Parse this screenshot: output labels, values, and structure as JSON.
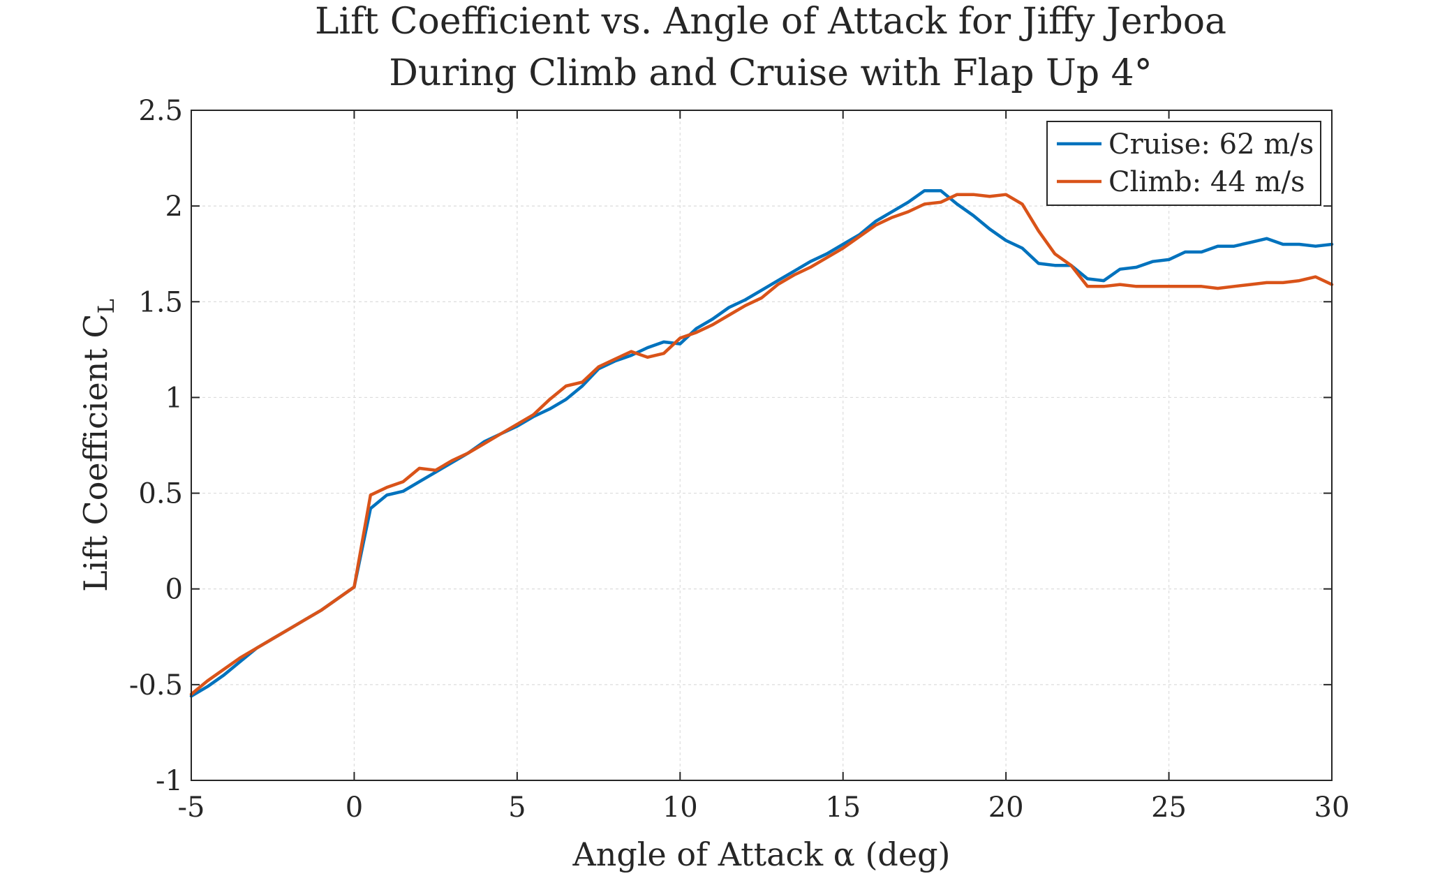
{
  "chart_data": {
    "type": "line",
    "title_lines": [
      "Lift Coefficient vs. Angle of Attack for Jiffy Jerboa",
      "During Climb and Cruise with Flap Up 4°"
    ],
    "xlabel": "Angle of Attack α (deg)",
    "ylabel": "Lift Coefficient C",
    "ylabel_subscript": "L",
    "xlim": [
      -5,
      30
    ],
    "ylim": [
      -1,
      2.5
    ],
    "xticks": [
      -5,
      0,
      5,
      10,
      15,
      20,
      25,
      30
    ],
    "xtick_labels": [
      "-5",
      "0",
      "5",
      "10",
      "15",
      "20",
      "25",
      "30"
    ],
    "yticks": [
      -1,
      -0.5,
      0,
      0.5,
      1,
      1.5,
      2,
      2.5
    ],
    "ytick_labels": [
      "-1",
      "-0.5",
      "0",
      "0.5",
      "1",
      "1.5",
      "2",
      "2.5"
    ],
    "grid": true,
    "legend_position": "top-right",
    "series": [
      {
        "name": "Cruise: 62 m/s",
        "color": "#0072BD",
        "x": [
          -5,
          -4.5,
          -4,
          -3.5,
          -3,
          -2.5,
          -2,
          -1.5,
          -1,
          -0.5,
          0,
          0.5,
          1,
          1.5,
          2,
          2.5,
          3,
          3.5,
          4,
          4.5,
          5,
          5.5,
          6,
          6.5,
          7,
          7.5,
          8,
          8.5,
          9,
          9.5,
          10,
          10.5,
          11,
          11.5,
          12,
          12.5,
          13,
          13.5,
          14,
          14.5,
          15,
          15.5,
          16,
          16.5,
          17,
          17.5,
          18,
          18.5,
          19,
          19.5,
          20,
          20.5,
          21,
          21.5,
          22,
          22.5,
          23,
          23.5,
          24,
          24.5,
          25,
          25.5,
          26,
          26.5,
          27,
          27.5,
          28,
          28.5,
          29,
          29.5,
          30
        ],
        "y": [
          -0.56,
          -0.51,
          -0.45,
          -0.38,
          -0.31,
          -0.26,
          -0.21,
          -0.16,
          -0.11,
          -0.05,
          0.01,
          0.42,
          0.49,
          0.51,
          0.56,
          0.61,
          0.66,
          0.71,
          0.77,
          0.81,
          0.85,
          0.9,
          0.94,
          0.99,
          1.06,
          1.15,
          1.19,
          1.22,
          1.26,
          1.29,
          1.28,
          1.36,
          1.41,
          1.47,
          1.51,
          1.56,
          1.61,
          1.66,
          1.71,
          1.75,
          1.8,
          1.85,
          1.92,
          1.97,
          2.02,
          2.08,
          2.08,
          2.01,
          1.95,
          1.88,
          1.82,
          1.78,
          1.7,
          1.69,
          1.69,
          1.62,
          1.61,
          1.67,
          1.68,
          1.71,
          1.72,
          1.76,
          1.76,
          1.79,
          1.79,
          1.81,
          1.83,
          1.8,
          1.8,
          1.79,
          1.8
        ]
      },
      {
        "name": "Climb: 44 m/s",
        "color": "#D95319",
        "x": [
          -5,
          -4.5,
          -4,
          -3.5,
          -3,
          -2.5,
          -2,
          -1.5,
          -1,
          -0.5,
          0,
          0.5,
          1,
          1.5,
          2,
          2.5,
          3,
          3.5,
          4,
          4.5,
          5,
          5.5,
          6,
          6.5,
          7,
          7.5,
          8,
          8.5,
          9,
          9.5,
          10,
          10.5,
          11,
          11.5,
          12,
          12.5,
          13,
          13.5,
          14,
          14.5,
          15,
          15.5,
          16,
          16.5,
          17,
          17.5,
          18,
          18.5,
          19,
          19.5,
          20,
          20.5,
          21,
          21.5,
          22,
          22.5,
          23,
          23.5,
          24,
          24.5,
          25,
          25.5,
          26,
          26.5,
          27,
          27.5,
          28,
          28.5,
          29,
          29.5,
          30
        ],
        "y": [
          -0.55,
          -0.48,
          -0.42,
          -0.36,
          -0.31,
          -0.26,
          -0.21,
          -0.16,
          -0.11,
          -0.05,
          0.01,
          0.49,
          0.53,
          0.56,
          0.63,
          0.62,
          0.67,
          0.71,
          0.76,
          0.81,
          0.86,
          0.91,
          0.99,
          1.06,
          1.08,
          1.16,
          1.2,
          1.24,
          1.21,
          1.23,
          1.31,
          1.34,
          1.38,
          1.43,
          1.48,
          1.52,
          1.59,
          1.64,
          1.68,
          1.73,
          1.78,
          1.84,
          1.9,
          1.94,
          1.97,
          2.01,
          2.02,
          2.06,
          2.06,
          2.05,
          2.06,
          2.01,
          1.87,
          1.75,
          1.69,
          1.58,
          1.58,
          1.59,
          1.58,
          1.58,
          1.58,
          1.58,
          1.58,
          1.57,
          1.58,
          1.59,
          1.6,
          1.6,
          1.61,
          1.63,
          1.59
        ]
      }
    ]
  }
}
